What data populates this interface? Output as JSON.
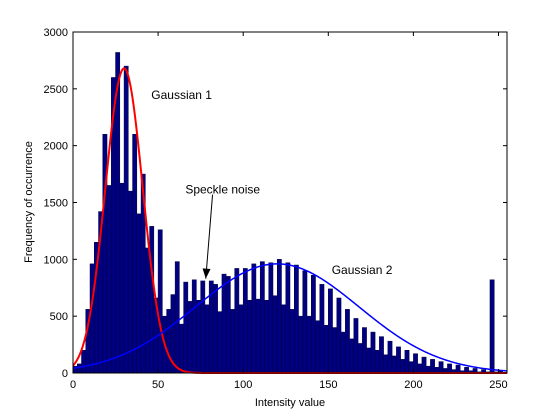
{
  "chart_data": {
    "type": "bar",
    "title": "",
    "xlabel": "Intensity value",
    "ylabel": "Frequency of occurrence",
    "xlim": [
      0,
      255
    ],
    "ylim": [
      0,
      3000
    ],
    "xticks": [
      "0",
      "50",
      "100",
      "150",
      "200",
      "250"
    ],
    "yticks": [
      "0",
      "500",
      "1000",
      "1500",
      "2000",
      "2500",
      "3000"
    ],
    "grid": false,
    "colors": {
      "bars": "#000080",
      "bar_edge": "#000040",
      "gaussian1": "#ff0000",
      "gaussian2": "#0000ff"
    },
    "histogram": {
      "bin_width": 2.5,
      "bin_starts": [
        0,
        2.5,
        5,
        7.5,
        10,
        12.5,
        15,
        17.5,
        20,
        22.5,
        25,
        27.5,
        30,
        32.5,
        35,
        37.5,
        40,
        42.5,
        45,
        47.5,
        50,
        52.5,
        55,
        57.5,
        60,
        62.5,
        65,
        67.5,
        70,
        72.5,
        75,
        77.5,
        80,
        82.5,
        85,
        87.5,
        90,
        92.5,
        95,
        97.5,
        100,
        102.5,
        105,
        107.5,
        110,
        112.5,
        115,
        117.5,
        120,
        122.5,
        125,
        127.5,
        130,
        132.5,
        135,
        137.5,
        140,
        142.5,
        145,
        147.5,
        150,
        152.5,
        155,
        157.5,
        160,
        162.5,
        165,
        167.5,
        170,
        172.5,
        175,
        177.5,
        180,
        182.5,
        185,
        187.5,
        190,
        192.5,
        195,
        197.5,
        200,
        202.5,
        205,
        207.5,
        210,
        212.5,
        215,
        217.5,
        220,
        222.5,
        225,
        227.5,
        230,
        232.5,
        235,
        237.5,
        240,
        242.5,
        245,
        247.5,
        250,
        252.5
      ],
      "values": [
        60,
        80,
        200,
        560,
        960,
        1150,
        1420,
        2100,
        1650,
        2600,
        2820,
        1670,
        2700,
        1600,
        2100,
        1400,
        1750,
        1100,
        1290,
        660,
        1260,
        500,
        560,
        690,
        980,
        430,
        800,
        630,
        820,
        640,
        810,
        600,
        810,
        780,
        540,
        870,
        850,
        560,
        920,
        600,
        920,
        640,
        960,
        650,
        980,
        640,
        970,
        680,
        1000,
        600,
        970,
        560,
        950,
        500,
        900,
        500,
        860,
        460,
        780,
        420,
        740,
        400,
        660,
        360,
        560,
        300,
        480,
        260,
        400,
        220,
        360,
        200,
        320,
        160,
        280,
        150,
        230,
        120,
        200,
        100,
        170,
        80,
        140,
        60,
        120,
        50,
        100,
        40,
        80,
        30,
        70,
        20,
        50,
        20,
        40,
        10,
        30,
        10,
        820,
        10,
        20,
        5,
        120,
        5
      ]
    },
    "series": [
      {
        "name": "Gaussian 1",
        "type": "line",
        "mean": 30,
        "std": 11,
        "peak": 2680,
        "x_range": [
          0,
          255
        ]
      },
      {
        "name": "Gaussian 2",
        "type": "line",
        "mean": 120,
        "std": 48,
        "peak": 960,
        "x_range": [
          0,
          255
        ]
      }
    ],
    "annotations": [
      {
        "text": "Gaussian 1",
        "x": 46,
        "y": 2410
      },
      {
        "text": "Speckle noise",
        "x": 66,
        "y": 1580
      },
      {
        "text": "Gaussian 2",
        "x": 152,
        "y": 870
      }
    ],
    "arrow": {
      "from": [
        82,
        1570
      ],
      "to": [
        78,
        830
      ]
    }
  }
}
